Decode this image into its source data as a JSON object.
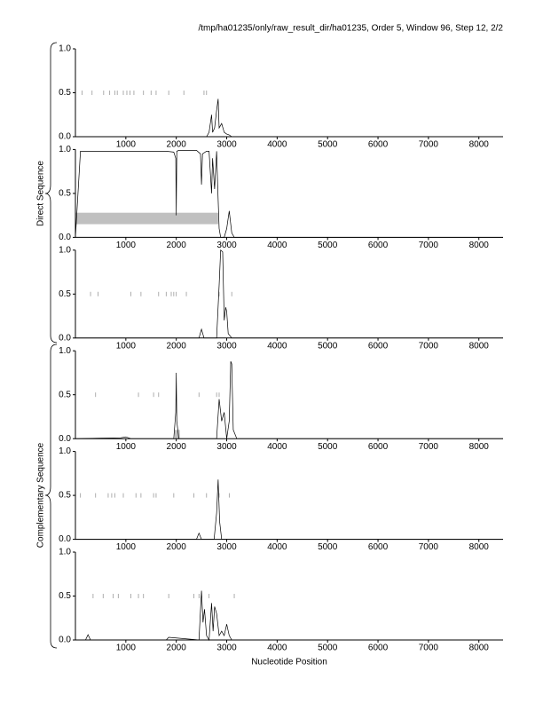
{
  "header": "/tmp/ha01235/only/raw_result_dir/ha01235, Order 5, Window 96, Step 12, 2/2",
  "xlabel": "Nucleotide Position",
  "groups": [
    "Direct Sequence",
    "Complementary Sequence"
  ],
  "chart_data": [
    {
      "type": "line",
      "color": "#000000",
      "marker_color": "#999999",
      "region_color": "#c0c0c0",
      "xlim": [
        0,
        8480
      ],
      "xticks": [
        1000,
        2000,
        3000,
        4000,
        5000,
        6000,
        7000,
        8000
      ],
      "ylim": [
        0,
        1
      ],
      "yticks": [
        {
          "value": 0,
          "label": "0.0"
        },
        {
          "value": 0.5,
          "label": "0.5"
        },
        {
          "value": 1,
          "label": "1.0"
        }
      ],
      "x": [
        0,
        2600,
        2650,
        2700,
        2720,
        2760,
        2800,
        2830,
        2850,
        2900,
        2950,
        3000,
        3050,
        3100,
        8480
      ],
      "values": [
        0,
        0,
        0.05,
        0.25,
        0.05,
        0.1,
        0.3,
        0.43,
        0.1,
        0.15,
        0.05,
        0.03,
        0.02,
        0,
        0
      ],
      "markers": [
        130,
        330,
        560,
        680,
        780,
        830,
        950,
        1020,
        1080,
        1160,
        1350,
        1500,
        1600,
        1850,
        2150,
        2550,
        2600
      ],
      "regions": []
    },
    {
      "type": "line",
      "color": "#000000",
      "marker_color": "#999999",
      "region_color": "#c0c0c0",
      "xlim": [
        0,
        8480
      ],
      "xticks": [
        1000,
        2000,
        3000,
        4000,
        5000,
        6000,
        7000,
        8000
      ],
      "ylim": [
        0,
        1
      ],
      "yticks": [
        {
          "value": 0,
          "label": "0.0"
        },
        {
          "value": 0.5,
          "label": "0.5"
        },
        {
          "value": 1,
          "label": "1.0"
        }
      ],
      "x": [
        0,
        100,
        1800,
        1950,
        1990,
        2000,
        2010,
        2050,
        2400,
        2480,
        2500,
        2520,
        2600,
        2650,
        2700,
        2720,
        2760,
        2800,
        2820,
        2850,
        2880,
        2950,
        3000,
        3050,
        3100,
        3150,
        8480
      ],
      "values": [
        0,
        0.98,
        0.98,
        0.97,
        0.9,
        0.25,
        0.98,
        0.99,
        0.99,
        0.95,
        0.6,
        0.95,
        0.98,
        0.98,
        0.5,
        0.9,
        0.55,
        0.98,
        0.6,
        0.1,
        0,
        0,
        0.1,
        0.3,
        0.05,
        0,
        0
      ],
      "markers": [],
      "regions": [
        {
          "start": 0,
          "end": 2830,
          "low": 0.15,
          "high": 0.28
        }
      ]
    },
    {
      "type": "line",
      "color": "#000000",
      "marker_color": "#999999",
      "region_color": "#c0c0c0",
      "xlim": [
        0,
        8480
      ],
      "xticks": [
        1000,
        2000,
        3000,
        4000,
        5000,
        6000,
        7000,
        8000
      ],
      "ylim": [
        0,
        1
      ],
      "yticks": [
        {
          "value": 0,
          "label": "0.0"
        },
        {
          "value": 0.5,
          "label": "0.5"
        },
        {
          "value": 1,
          "label": "1.0"
        }
      ],
      "x": [
        0,
        2450,
        2500,
        2550,
        2800,
        2850,
        2880,
        2920,
        2950,
        2980,
        3000,
        3030,
        3100,
        8480
      ],
      "values": [
        0,
        0,
        0.1,
        0,
        0,
        0.6,
        1,
        0.98,
        0.2,
        0.35,
        0.3,
        0.05,
        0,
        0
      ],
      "markers": [
        300,
        450,
        1100,
        1300,
        1650,
        1800,
        1900,
        1950,
        2000,
        2200,
        2850,
        3100
      ],
      "regions": []
    },
    {
      "type": "line",
      "color": "#000000",
      "marker_color": "#999999",
      "region_color": "#c0c0c0",
      "xlim": [
        0,
        8480
      ],
      "xticks": [
        1000,
        2000,
        3000,
        4000,
        5000,
        6000,
        7000,
        8000
      ],
      "ylim": [
        0,
        1
      ],
      "yticks": [
        {
          "value": 0,
          "label": "0.0"
        },
        {
          "value": 0.5,
          "label": "0.5"
        },
        {
          "value": 1,
          "label": "1.0"
        }
      ],
      "x": [
        0,
        900,
        1000,
        1100,
        1950,
        1990,
        2000,
        2010,
        2050,
        2800,
        2850,
        2900,
        2950,
        3000,
        3050,
        3080,
        3100,
        3130,
        3200,
        8480
      ],
      "values": [
        0,
        0.01,
        0.02,
        0,
        0,
        0.3,
        0.75,
        0.2,
        0,
        0,
        0.45,
        0.2,
        0.3,
        0,
        0.2,
        0.88,
        0.85,
        0.1,
        0,
        0
      ],
      "markers": [
        400,
        1250,
        1550,
        1650,
        2450,
        2800,
        2850
      ],
      "regions": [
        {
          "start": 1970,
          "end": 2070,
          "low": 0,
          "high": 0.1
        }
      ]
    },
    {
      "type": "line",
      "color": "#000000",
      "marker_color": "#999999",
      "region_color": "#c0c0c0",
      "xlim": [
        0,
        8480
      ],
      "xticks": [
        1000,
        2000,
        3000,
        4000,
        5000,
        6000,
        7000,
        8000
      ],
      "ylim": [
        0,
        1
      ],
      "yticks": [
        {
          "value": 0,
          "label": "0.0"
        },
        {
          "value": 0.5,
          "label": "0.5"
        },
        {
          "value": 1,
          "label": "1.0"
        }
      ],
      "x": [
        0,
        2400,
        2450,
        2500,
        2750,
        2800,
        2830,
        2860,
        2900,
        8480
      ],
      "values": [
        0,
        0,
        0.07,
        0,
        0,
        0.3,
        0.68,
        0.2,
        0,
        0
      ],
      "markers": [
        100,
        400,
        650,
        720,
        780,
        950,
        1200,
        1300,
        1550,
        1600,
        1950,
        2350,
        2600,
        2850,
        3050
      ],
      "regions": []
    },
    {
      "type": "line",
      "color": "#000000",
      "marker_color": "#999999",
      "region_color": "#c0c0c0",
      "xlim": [
        0,
        8480
      ],
      "xticks": [
        1000,
        2000,
        3000,
        4000,
        5000,
        6000,
        7000,
        8000
      ],
      "ylim": [
        0,
        1
      ],
      "yticks": [
        {
          "value": 0,
          "label": "0.0"
        },
        {
          "value": 0.5,
          "label": "0.5"
        },
        {
          "value": 1,
          "label": "1.0"
        }
      ],
      "x": [
        0,
        200,
        250,
        300,
        1800,
        1850,
        2450,
        2500,
        2530,
        2560,
        2600,
        2650,
        2700,
        2730,
        2760,
        2800,
        2850,
        2900,
        2950,
        3000,
        3050,
        3100,
        8480
      ],
      "values": [
        0,
        0,
        0.06,
        0,
        0,
        0.03,
        0,
        0.56,
        0.2,
        0.35,
        0.05,
        0,
        0.42,
        0.1,
        0.38,
        0.3,
        0.05,
        0.1,
        0.05,
        0.18,
        0.05,
        0,
        0
      ],
      "markers": [
        350,
        550,
        750,
        850,
        1100,
        1250,
        1350,
        1850,
        2350,
        2450,
        2650,
        3150
      ],
      "regions": []
    }
  ]
}
